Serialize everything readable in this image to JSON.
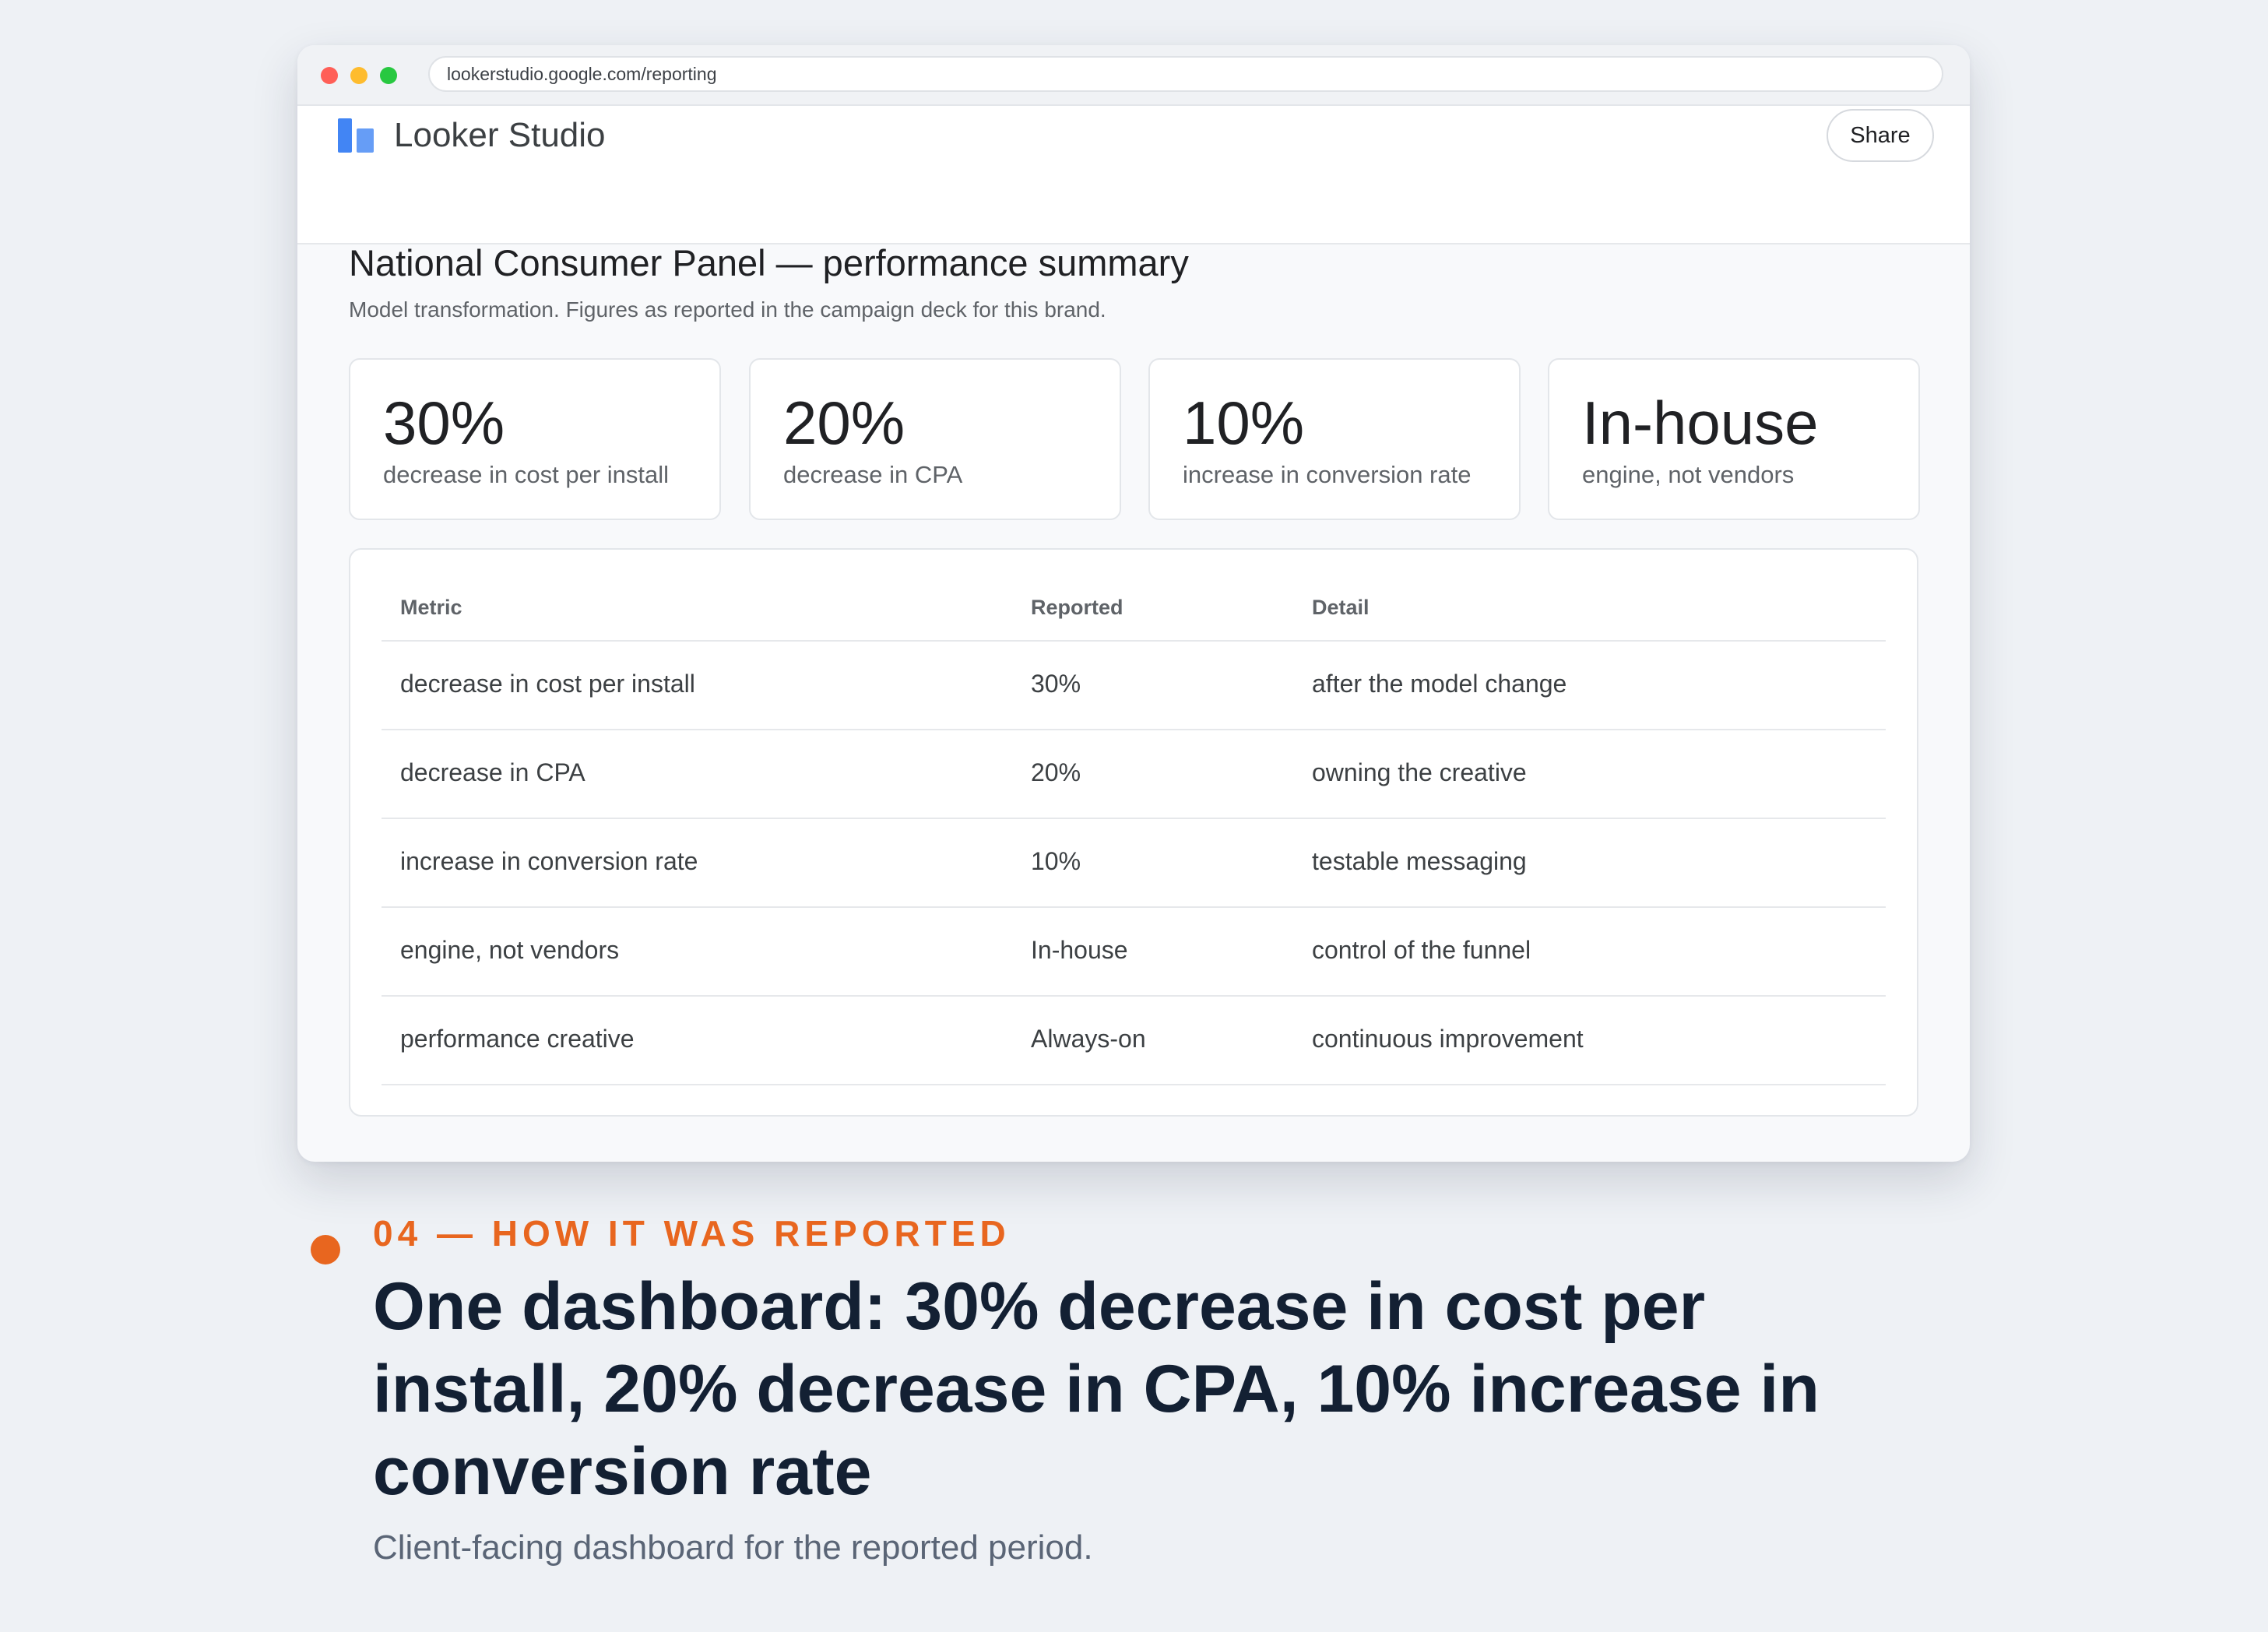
{
  "browser": {
    "url": "lookerstudio.google.com/reporting"
  },
  "app": {
    "title": "Looker Studio",
    "share_label": "Share",
    "brand_color": "#4285f4"
  },
  "report": {
    "title": "National Consumer Panel — performance summary",
    "subtitle": "Model transformation. Figures as reported in the campaign deck for this brand."
  },
  "kpis": [
    {
      "value": "30%",
      "label": "decrease in cost per install"
    },
    {
      "value": "20%",
      "label": "decrease in CPA"
    },
    {
      "value": "10%",
      "label": "increase in conversion rate"
    },
    {
      "value": "In-house",
      "label": "engine, not vendors"
    }
  ],
  "table": {
    "headers": [
      "Metric",
      "Reported",
      "Detail"
    ],
    "rows": [
      {
        "metric": "decrease in cost per install",
        "reported": "30%",
        "detail": "after the model change"
      },
      {
        "metric": "decrease in CPA",
        "reported": "20%",
        "detail": "owning the creative"
      },
      {
        "metric": "increase in conversion rate",
        "reported": "10%",
        "detail": "testable messaging"
      },
      {
        "metric": "engine, not vendors",
        "reported": "In-house",
        "detail": "control of the funnel"
      },
      {
        "metric": "performance creative",
        "reported": "Always-on",
        "detail": "continuous improvement"
      }
    ]
  },
  "section": {
    "eyebrow": "04 — HOW IT WAS REPORTED",
    "headline": "One dashboard: 30% decrease in cost per install, 20% decrease in CPA, 10% increase in conversion rate",
    "caption": "Client-facing dashboard for the reported period.",
    "accent_color": "#e8661f"
  }
}
